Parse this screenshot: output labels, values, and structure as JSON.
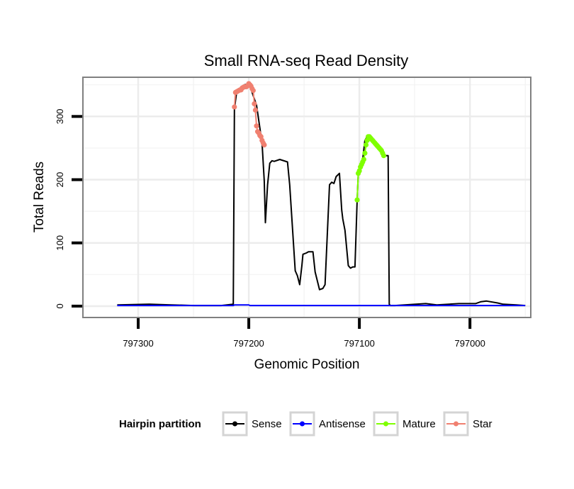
{
  "chart_data": {
    "type": "line",
    "title": "Small RNA-seq Read Density",
    "xlabel": "Genomic Position",
    "ylabel": "Total Reads",
    "x_reversed": true,
    "xlim": [
      797350,
      796945
    ],
    "ylim": [
      -18,
      362
    ],
    "xticks": [
      797300,
      797200,
      797100,
      797000
    ],
    "yticks": [
      0,
      100,
      200,
      300
    ],
    "grid": true,
    "legend": {
      "title": "Hairpin partition",
      "position": "bottom",
      "entries": [
        {
          "label": "Sense",
          "color": "#000000"
        },
        {
          "label": "Antisense",
          "color": "#0000ff"
        },
        {
          "label": "Mature",
          "color": "#7fff00"
        },
        {
          "label": "Star",
          "color": "#f08070"
        }
      ]
    },
    "series": [
      {
        "name": "Sense",
        "color": "#000000",
        "x": [
          797319,
          797290,
          797270,
          797250,
          797225,
          797214,
          797213,
          797211,
          797206,
          797205,
          797204,
          797200,
          797199,
          797193,
          797188,
          797186,
          797185,
          797183,
          797181,
          797179,
          797177,
          797172,
          797165,
          797163,
          797158,
          797156,
          797154,
          797152,
          797151,
          797148,
          797146,
          797142,
          797140,
          797136,
          797133,
          797131,
          797127,
          797125,
          797123,
          797121,
          797118,
          797116,
          797115,
          797113,
          797110,
          797108,
          797106,
          797104,
          797102,
          797101,
          797099,
          797097,
          797095,
          797093,
          797088,
          797086,
          797084,
          797082,
          797080,
          797078,
          797076,
          797074,
          797073,
          797072,
          797068,
          797040,
          797030,
          797010,
          796995,
          796990,
          796985,
          796975,
          796970,
          796958,
          796950
        ],
        "y": [
          2,
          3,
          2,
          1,
          1,
          3,
          312,
          338,
          345,
          348,
          350,
          352,
          348,
          318,
          258,
          198,
          132,
          192,
          226,
          230,
          229,
          232,
          228,
          192,
          56,
          48,
          34,
          64,
          82,
          84,
          86,
          86,
          54,
          26,
          28,
          34,
          192,
          196,
          194,
          205,
          210,
          152,
          138,
          120,
          64,
          60,
          62,
          62,
          168,
          210,
          220,
          232,
          262,
          268,
          262,
          256,
          252,
          248,
          242,
          238,
          238,
          238,
          3,
          1,
          1,
          4,
          2,
          4,
          4,
          7,
          8,
          5,
          3,
          2,
          1
        ]
      },
      {
        "name": "Antisense",
        "color": "#0000ff",
        "x": [
          797319,
          797214,
          797213,
          797200,
          797199,
          797180,
          797000,
          796950
        ],
        "y": [
          1,
          1,
          2,
          2,
          1,
          1,
          1,
          1
        ]
      },
      {
        "name": "Mature",
        "color": "#7fff00",
        "x": [
          797102,
          797101,
          797100,
          797099,
          797098,
          797097,
          797096,
          797095,
          797094,
          797093,
          797092,
          797091,
          797090,
          797089,
          797088,
          797087,
          797086,
          797085,
          797084,
          797083,
          797082,
          797081,
          797080,
          797079,
          797078
        ],
        "y": [
          168,
          210,
          214,
          220,
          224,
          228,
          232,
          242,
          255,
          262,
          268,
          268,
          266,
          264,
          262,
          260,
          258,
          256,
          254,
          252,
          250,
          248,
          246,
          242,
          238
        ]
      },
      {
        "name": "Star",
        "color": "#f08070",
        "x": [
          797213,
          797212,
          797211,
          797210,
          797209,
          797208,
          797207,
          797206,
          797205,
          797204,
          797203,
          797202,
          797201,
          797200,
          797199,
          797198,
          797197,
          797196,
          797195,
          797194,
          797193,
          797192,
          797191,
          797190,
          797189,
          797188,
          797187,
          797186
        ],
        "y": [
          315,
          338,
          339,
          340,
          341,
          342,
          342,
          345,
          346,
          347,
          347,
          347,
          349,
          352,
          350,
          348,
          344,
          341,
          320,
          310,
          285,
          276,
          274,
          270,
          268,
          262,
          258,
          255
        ]
      }
    ]
  }
}
